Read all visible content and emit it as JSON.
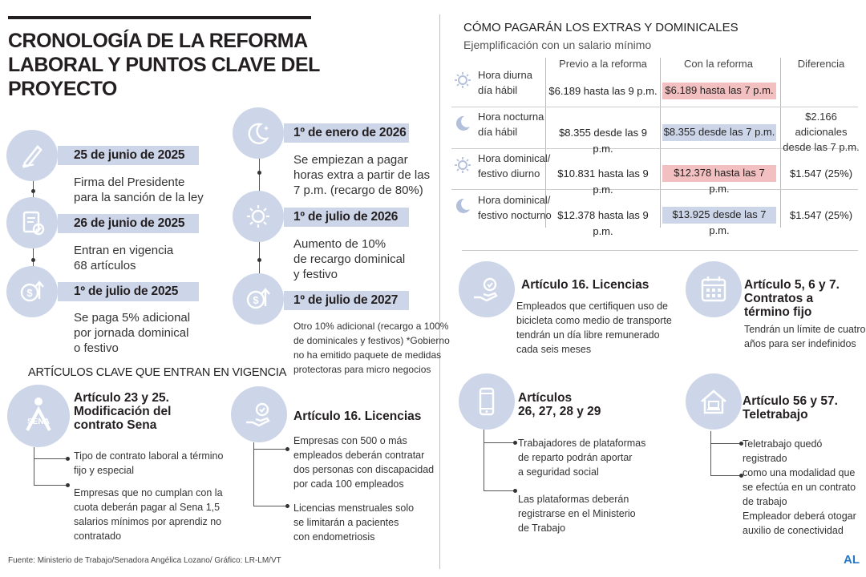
{
  "title": "CRONOLOGÍA DE LA REFORMA LABORAL Y PUNTOS CLAVE DEL PROYECTO",
  "timeline_left": [
    {
      "date": "25 de junio de 2025",
      "text": [
        "Firma del Presidente",
        "para la sanción de la ley"
      ],
      "icon": "pen-icon"
    },
    {
      "date": "26 de junio de 2025",
      "text": [
        "Entran en vigencia",
        "68 artículos"
      ],
      "icon": "document-check-icon"
    },
    {
      "date": "1º de julio de 2025",
      "text": [
        "Se paga 5% adicional",
        "por jornada dominical",
        "o festivo"
      ],
      "icon": "money-up-icon"
    }
  ],
  "timeline_right": [
    {
      "date": "1º de enero de 2026",
      "text": [
        "Se empiezan a pagar",
        "horas extra a partir de las",
        "7 p.m. (recargo de 80%)"
      ],
      "icon": "moon-icon"
    },
    {
      "date": "1º de julio de 2026",
      "text": [
        "Aumento de 10%",
        "de recargo dominical",
        "y festivo"
      ],
      "icon": "sun-icon"
    },
    {
      "date": "1º de julio de 2027",
      "text": [
        "Otro 10% adicional (recargo a 100%",
        "de dominicales y festivos) *Gobierno",
        "no ha emitido paquete de medidas",
        "protectoras para micro negocios"
      ],
      "icon": "money-up-icon"
    }
  ],
  "articles_heading": "ARTÍCULOS CLAVE QUE ENTRAN EN VIGENCIA",
  "article_sena": {
    "title": [
      "Artículo 23 y 25.",
      "Modificación del",
      "contrato Sena"
    ],
    "logo_text": "SENA",
    "bullets": [
      [
        "Tipo de contrato laboral a término",
        "fijo y especial"
      ],
      [
        "Empresas que no cumplan con la",
        "cuota deberán pagar al Sena 1,5",
        "salarios mínimos por aprendiz no",
        "contratado"
      ]
    ]
  },
  "article_16_left": {
    "title": "Artículo 16. Licencias",
    "icon": "hand-shield-icon",
    "bullets": [
      [
        "Empresas con 500 o más",
        "empleados deberán contratar",
        "dos personas con discapacidad",
        "por cada 100 empleados"
      ],
      [
        "Licencias menstruales solo",
        "se limitarán a pacientes",
        "con endometriosis"
      ]
    ]
  },
  "pay_table": {
    "heading": "CÓMO PAGARÁN LOS EXTRAS Y DOMINICALES",
    "subheading": "Ejemplificación con un salario mínimo",
    "columns": [
      "Previo a la reforma",
      "Con la reforma",
      "Diferencia"
    ],
    "rows": [
      {
        "label": [
          "Hora diurna",
          "día hábil"
        ],
        "icon": "sun-icon",
        "before": "$6.189 hasta las 9 p.m.",
        "after": "$6.189 hasta las 7 p.m.",
        "after_color": "#f2c0c0",
        "diff": []
      },
      {
        "label": [
          "Hora nocturna",
          "día hábil"
        ],
        "icon": "moon-icon",
        "before": "$8.355 desde las 9 p.m.",
        "after": "$8.355 desde las 7 p.m.",
        "after_color": "#cdd6e8",
        "diff": [
          "$2.166 adicionales",
          "desde las 7 p.m."
        ]
      },
      {
        "label": [
          "Hora dominical/",
          "festivo diurno"
        ],
        "icon": "sun-icon",
        "before": "$10.831 hasta las 9 p.m.",
        "after": "$12.378 hasta las 7 p.m.",
        "after_color": "#f2c0c0",
        "diff": [
          "$1.547 (25%)"
        ]
      },
      {
        "label": [
          "Hora dominical/",
          "festivo nocturno"
        ],
        "icon": "moon-icon",
        "before": "$12.378 hasta las 9 p.m.",
        "after": "$13.925 desde las 7 p.m.",
        "after_color": "#cdd6e8",
        "diff": [
          "$1.547 (25%)"
        ]
      }
    ]
  },
  "article_16_right": {
    "title": "Artículo 16. Licencias",
    "icon": "hand-bicycle-icon",
    "text": [
      "Empleados que certifiquen uso de",
      "bicicleta como medio de transporte",
      "tendrán un día libre remunerado",
      "cada seis meses"
    ]
  },
  "article_5_6_7": {
    "title": [
      "Artículo 5, 6 y 7.",
      "Contratos a",
      "término fijo"
    ],
    "icon": "calendar-icon",
    "text": [
      "Tendrán un límite de cuatro",
      "años para ser indefinidos"
    ]
  },
  "article_26_29": {
    "title": [
      "Artículos",
      "26, 27, 28 y 29"
    ],
    "icon": "smartphone-icon",
    "bullets": [
      [
        "Trabajadores de plataformas",
        "de reparto podrán aportar",
        "a seguridad social"
      ],
      [
        "Las plataformas deberán",
        "registrarse en el Ministerio",
        "de Trabajo"
      ]
    ]
  },
  "article_56_57": {
    "title": [
      "Artículo 56 y 57.",
      "Teletrabajo"
    ],
    "icon": "house-laptop-icon",
    "bullets": [
      [
        "Teletrabajo quedó registrado",
        "como una modalidad que",
        "se efectúa en un contrato",
        "de trabajo"
      ],
      [
        "Empleador deberá otogar",
        "auxilio de conectividad"
      ]
    ]
  },
  "source": "Fuente: Ministerio de Trabajo/Senadora Angélica Lozano/ Gráfico: LR-LM/VT",
  "brand": "AL",
  "colors": {
    "accent_blue": "#cdd6e8",
    "accent_pink": "#f2c0c0",
    "brand": "#2a78c2"
  }
}
